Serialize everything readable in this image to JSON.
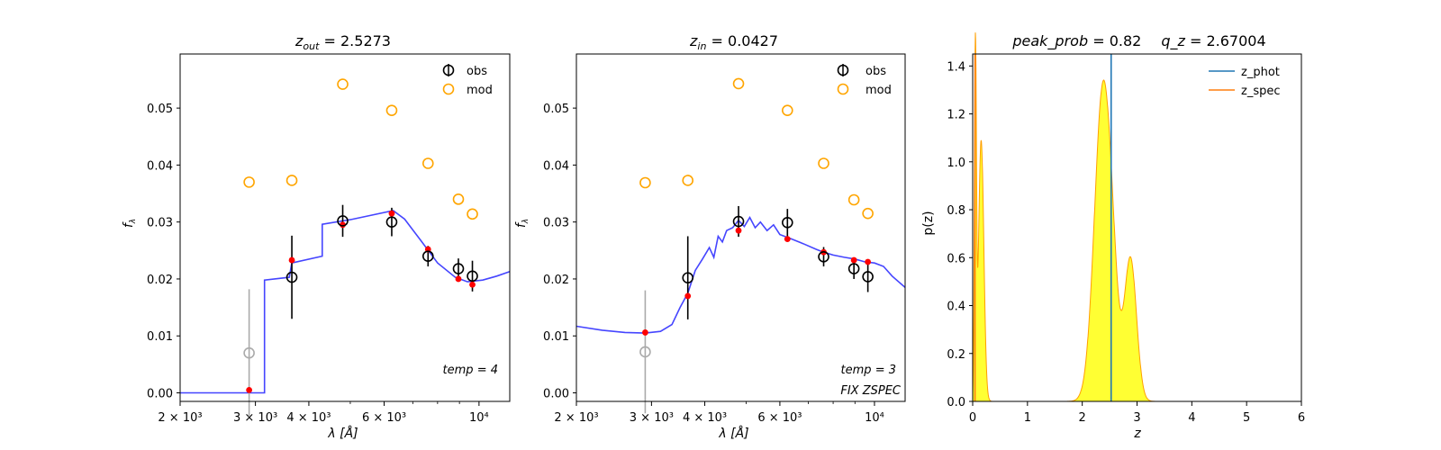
{
  "chart_data": [
    {
      "type": "scatter",
      "title": "z_out = 2.5273",
      "title_main": "z",
      "title_sub": "out",
      "title_rest": " = 2.5273",
      "xlabel": "λ [Å]",
      "ylabel": "f_λ",
      "xscale": "log",
      "xlim": [
        2000,
        11800
      ],
      "ylim": [
        -0.0015,
        0.0595
      ],
      "xticks": [
        2000,
        3000,
        4000,
        6000,
        10000
      ],
      "xtick_labels": [
        "2 × 10³",
        "3 × 10³",
        "4 × 10³",
        "6 × 10³",
        "10⁴"
      ],
      "yticks": [
        0.0,
        0.01,
        0.02,
        0.03,
        0.04,
        0.05
      ],
      "ytick_labels": [
        "0.00",
        "0.01",
        "0.02",
        "0.03",
        "0.04",
        "0.05"
      ],
      "legend": [
        "obs",
        "mod"
      ],
      "annotation": "temp = 4",
      "annotation2": "",
      "series": [
        {
          "name": "obs",
          "x": [
            3650,
            4800,
            6250,
            7600,
            8950,
            9650
          ],
          "y": [
            0.0203,
            0.0302,
            0.03,
            0.024,
            0.0218,
            0.0205
          ],
          "yerr": [
            0.0073,
            0.0028,
            0.0025,
            0.0018,
            0.0018,
            0.0027
          ],
          "color": "#000000"
        },
        {
          "name": "obs_masked",
          "x": [
            2900
          ],
          "y": [
            0.007
          ],
          "yerr": [
            0.0112
          ],
          "color": "#aaaaaa"
        },
        {
          "name": "mod",
          "x": [
            2900,
            3650,
            4800,
            6250,
            7600,
            8950,
            9650
          ],
          "y": [
            0.037,
            0.0373,
            0.0542,
            0.0496,
            0.0403,
            0.034,
            0.0314
          ],
          "color": "#ffa500"
        },
        {
          "name": "model_phot",
          "x": [
            2900,
            3650,
            4800,
            6250,
            7600,
            8950,
            9650
          ],
          "y": [
            0.0005,
            0.0233,
            0.0295,
            0.0315,
            0.0252,
            0.02,
            0.019
          ],
          "color": "#ff0000"
        },
        {
          "name": "template",
          "x": [
            2000,
            3100,
            3150,
            3150,
            3600,
            3650,
            4300,
            4300,
            5000,
            6300,
            6700,
            7300,
            8000,
            8800,
            9400,
            10200,
            11000,
            11800
          ],
          "y": [
            0.0,
            0.0,
            0.0,
            0.0198,
            0.0203,
            0.0228,
            0.024,
            0.0296,
            0.0304,
            0.032,
            0.0305,
            0.0268,
            0.0228,
            0.0203,
            0.0195,
            0.0198,
            0.0205,
            0.0213
          ],
          "color": "#3b3bff"
        }
      ]
    },
    {
      "type": "scatter",
      "title": "z_in = 0.0427",
      "title_main": "z",
      "title_sub": "in",
      "title_rest": " = 0.0427",
      "xlabel": "λ [Å]",
      "ylabel": "f_λ",
      "xscale": "log",
      "xlim": [
        2000,
        11800
      ],
      "ylim": [
        -0.0015,
        0.0595
      ],
      "xticks": [
        2000,
        3000,
        4000,
        6000,
        10000
      ],
      "xtick_labels": [
        "2 × 10³",
        "3 × 10³",
        "4 × 10³",
        "6 × 10³",
        "10⁴"
      ],
      "yticks": [
        0.0,
        0.01,
        0.02,
        0.03,
        0.04,
        0.05
      ],
      "ytick_labels": [
        "0.00",
        "0.01",
        "0.02",
        "0.03",
        "0.04",
        "0.05"
      ],
      "legend": [
        "obs",
        "mod"
      ],
      "annotation": "temp = 3",
      "annotation2": "FIX ZSPEC",
      "series": [
        {
          "name": "obs",
          "x": [
            3650,
            4800,
            6250,
            7600,
            8950,
            9650
          ],
          "y": [
            0.0202,
            0.0301,
            0.0299,
            0.0239,
            0.0218,
            0.0204
          ],
          "yerr": [
            0.0073,
            0.0027,
            0.0024,
            0.0017,
            0.0018,
            0.0027
          ],
          "color": "#000000"
        },
        {
          "name": "obs_masked",
          "x": [
            2900
          ],
          "y": [
            0.0072
          ],
          "yerr": [
            0.0108
          ],
          "color": "#aaaaaa"
        },
        {
          "name": "mod",
          "x": [
            2900,
            3650,
            4800,
            6250,
            7600,
            8950,
            9650
          ],
          "y": [
            0.0369,
            0.0373,
            0.0543,
            0.0496,
            0.0403,
            0.0339,
            0.0315
          ],
          "color": "#ffa500"
        },
        {
          "name": "model_phot",
          "x": [
            2900,
            3650,
            4800,
            6250,
            7600,
            8950,
            9650
          ],
          "y": [
            0.0106,
            0.017,
            0.0285,
            0.027,
            0.0247,
            0.0233,
            0.023
          ],
          "color": "#ff0000"
        },
        {
          "name": "template",
          "x": [
            2000,
            2300,
            2600,
            2900,
            3150,
            3350,
            3500,
            3650,
            3800,
            3950,
            4100,
            4200,
            4300,
            4400,
            4500,
            4650,
            4800,
            4950,
            5100,
            5250,
            5400,
            5600,
            5800,
            6000,
            6300,
            6800,
            7300,
            7600,
            8000,
            8500,
            9000,
            9500,
            10000,
            10500,
            11000,
            11800
          ],
          "y": [
            0.0117,
            0.011,
            0.0106,
            0.0105,
            0.0108,
            0.012,
            0.015,
            0.0175,
            0.0215,
            0.0235,
            0.0255,
            0.0238,
            0.0275,
            0.0265,
            0.0285,
            0.029,
            0.0303,
            0.0292,
            0.0308,
            0.029,
            0.03,
            0.0285,
            0.0295,
            0.0278,
            0.0272,
            0.0262,
            0.0252,
            0.0247,
            0.0242,
            0.0238,
            0.0235,
            0.023,
            0.0228,
            0.0222,
            0.0205,
            0.0185
          ],
          "color": "#3b3bff"
        }
      ]
    },
    {
      "type": "area",
      "title": "peak_prob = 0.82    q_z = 2.67004",
      "title_part1_main": "peak_prob",
      "title_part1_rest": " = 0.82",
      "title_part2_main": "q_z",
      "title_part2_rest": " = 2.67004",
      "xlabel": "z",
      "ylabel": "p(z)",
      "xlim": [
        0,
        6
      ],
      "ylim": [
        0,
        1.45
      ],
      "xticks": [
        0,
        1,
        2,
        3,
        4,
        5,
        6
      ],
      "xtick_labels": [
        "0",
        "1",
        "2",
        "3",
        "4",
        "5",
        "6"
      ],
      "yticks": [
        0.0,
        0.2,
        0.4,
        0.6,
        0.8,
        1.0,
        1.2,
        1.4
      ],
      "ytick_labels": [
        "0.0",
        "0.2",
        "0.4",
        "0.6",
        "0.8",
        "1.0",
        "1.2",
        "1.4"
      ],
      "legend": [
        "z_phot",
        "z_spec"
      ],
      "z_phot": 2.5273,
      "z_spec": 0.0427,
      "components": [
        {
          "mean": 0.05,
          "sigma": 0.018,
          "amp": 1.44
        },
        {
          "mean": 0.155,
          "sigma": 0.048,
          "amp": 1.09
        },
        {
          "mean": 2.38,
          "sigma": 0.155,
          "amp": 1.31
        },
        {
          "mean": 2.57,
          "sigma": 0.1,
          "amp": 0.17
        },
        {
          "mean": 2.88,
          "sigma": 0.11,
          "amp": 0.595
        }
      ],
      "z_max": 5.0,
      "colors": {
        "fill": "#ffff33",
        "curve": "#ff9f00",
        "z_phot": "#1f77b4",
        "z_spec": "#ff7f0e"
      }
    }
  ]
}
